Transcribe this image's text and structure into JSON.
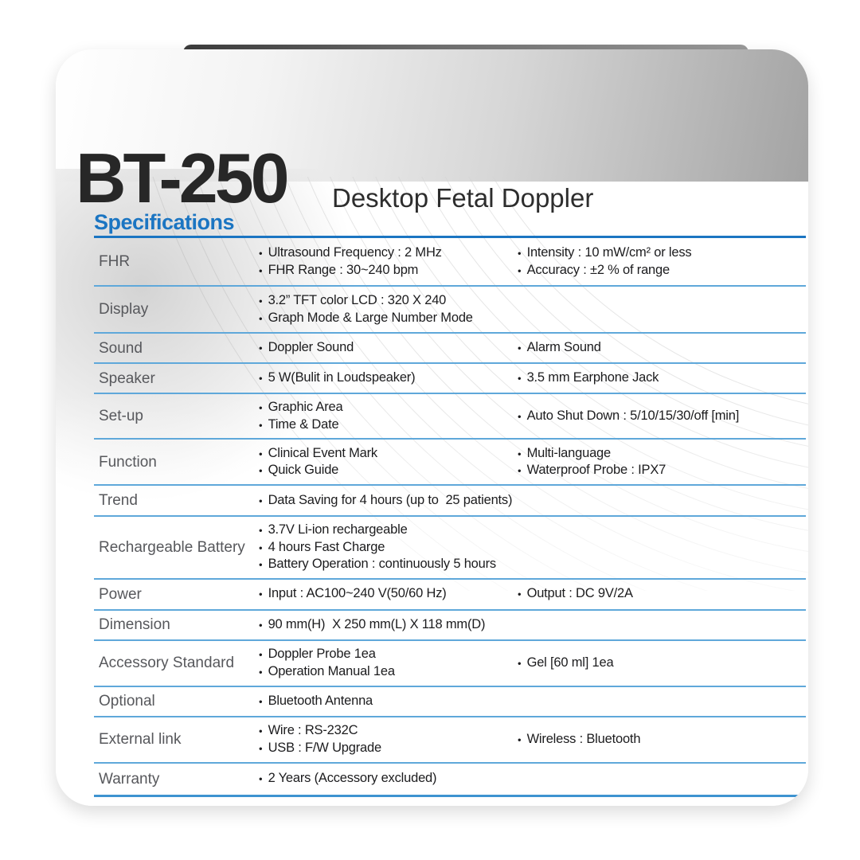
{
  "colors": {
    "accent": "#1b75c2",
    "divider": "#5fa8da",
    "strong_line": "#3e93d0",
    "label_gray": "#57585c",
    "text_dark": "#1c1c1e",
    "title_dark": "#272727",
    "header_gradient_right": "#a3a3a3"
  },
  "header": {
    "title": "BT-250",
    "subtitle": "Desktop Fetal Doppler"
  },
  "section": {
    "heading": "Specifications"
  },
  "table": {
    "rows": [
      {
        "label": "FHR",
        "col1": [
          "Ultrasound Frequency : 2 MHz",
          "FHR Range : 30~240 bpm"
        ],
        "col2": [
          "Intensity : 10 mW/cm² or less",
          "Accuracy : ±2 % of range"
        ]
      },
      {
        "label": "Display",
        "col1": [
          "3.2” TFT color LCD : 320 X 240",
          "Graph Mode & Large Number Mode"
        ],
        "col2": []
      },
      {
        "label": "Sound",
        "col1": [
          "Doppler Sound"
        ],
        "col2": [
          "Alarm Sound"
        ]
      },
      {
        "label": "Speaker",
        "col1": [
          "5 W(Bulit in Loudspeaker)"
        ],
        "col2": [
          "3.5 mm Earphone Jack"
        ]
      },
      {
        "label": "Set-up",
        "col1": [
          "Graphic Area",
          "Time & Date"
        ],
        "col2": [
          "Auto Shut Down : 5/10/15/30/off [min]"
        ]
      },
      {
        "label": "Function",
        "col1": [
          "Clinical Event Mark",
          "Quick Guide"
        ],
        "col2": [
          "Multi-language",
          "Waterproof Probe : IPX7"
        ]
      },
      {
        "label": "Trend",
        "col1": [
          "Data Saving for 4 hours (up to  25 patients)"
        ],
        "col2": []
      },
      {
        "label": "Rechargeable Battery",
        "col1": [
          "3.7V Li-ion rechargeable",
          "4 hours Fast Charge",
          "Battery Operation : continuously 5 hours"
        ],
        "col2": []
      },
      {
        "label": "Power",
        "col1": [
          "Input : AC100~240 V(50/60 Hz)"
        ],
        "col2": [
          "Output : DC 9V/2A"
        ]
      },
      {
        "label": "Dimension",
        "col1": [
          "90 mm(H)  X 250 mm(L) X 118 mm(D)"
        ],
        "col2": []
      },
      {
        "label": "Accessory Standard",
        "col1": [
          "Doppler Probe 1ea",
          "Operation Manual 1ea"
        ],
        "col2": [
          "Gel [60 ml] 1ea"
        ]
      },
      {
        "label": "Optional",
        "col1": [
          "Bluetooth Antenna"
        ],
        "col2": []
      },
      {
        "label": "External link",
        "col1": [
          "Wire : RS-232C",
          "USB : F/W Upgrade"
        ],
        "col2": [
          "Wireless : Bluetooth"
        ]
      },
      {
        "label": "Warranty",
        "col1": [
          "2 Years (Accessory excluded)"
        ],
        "col2": []
      }
    ]
  }
}
